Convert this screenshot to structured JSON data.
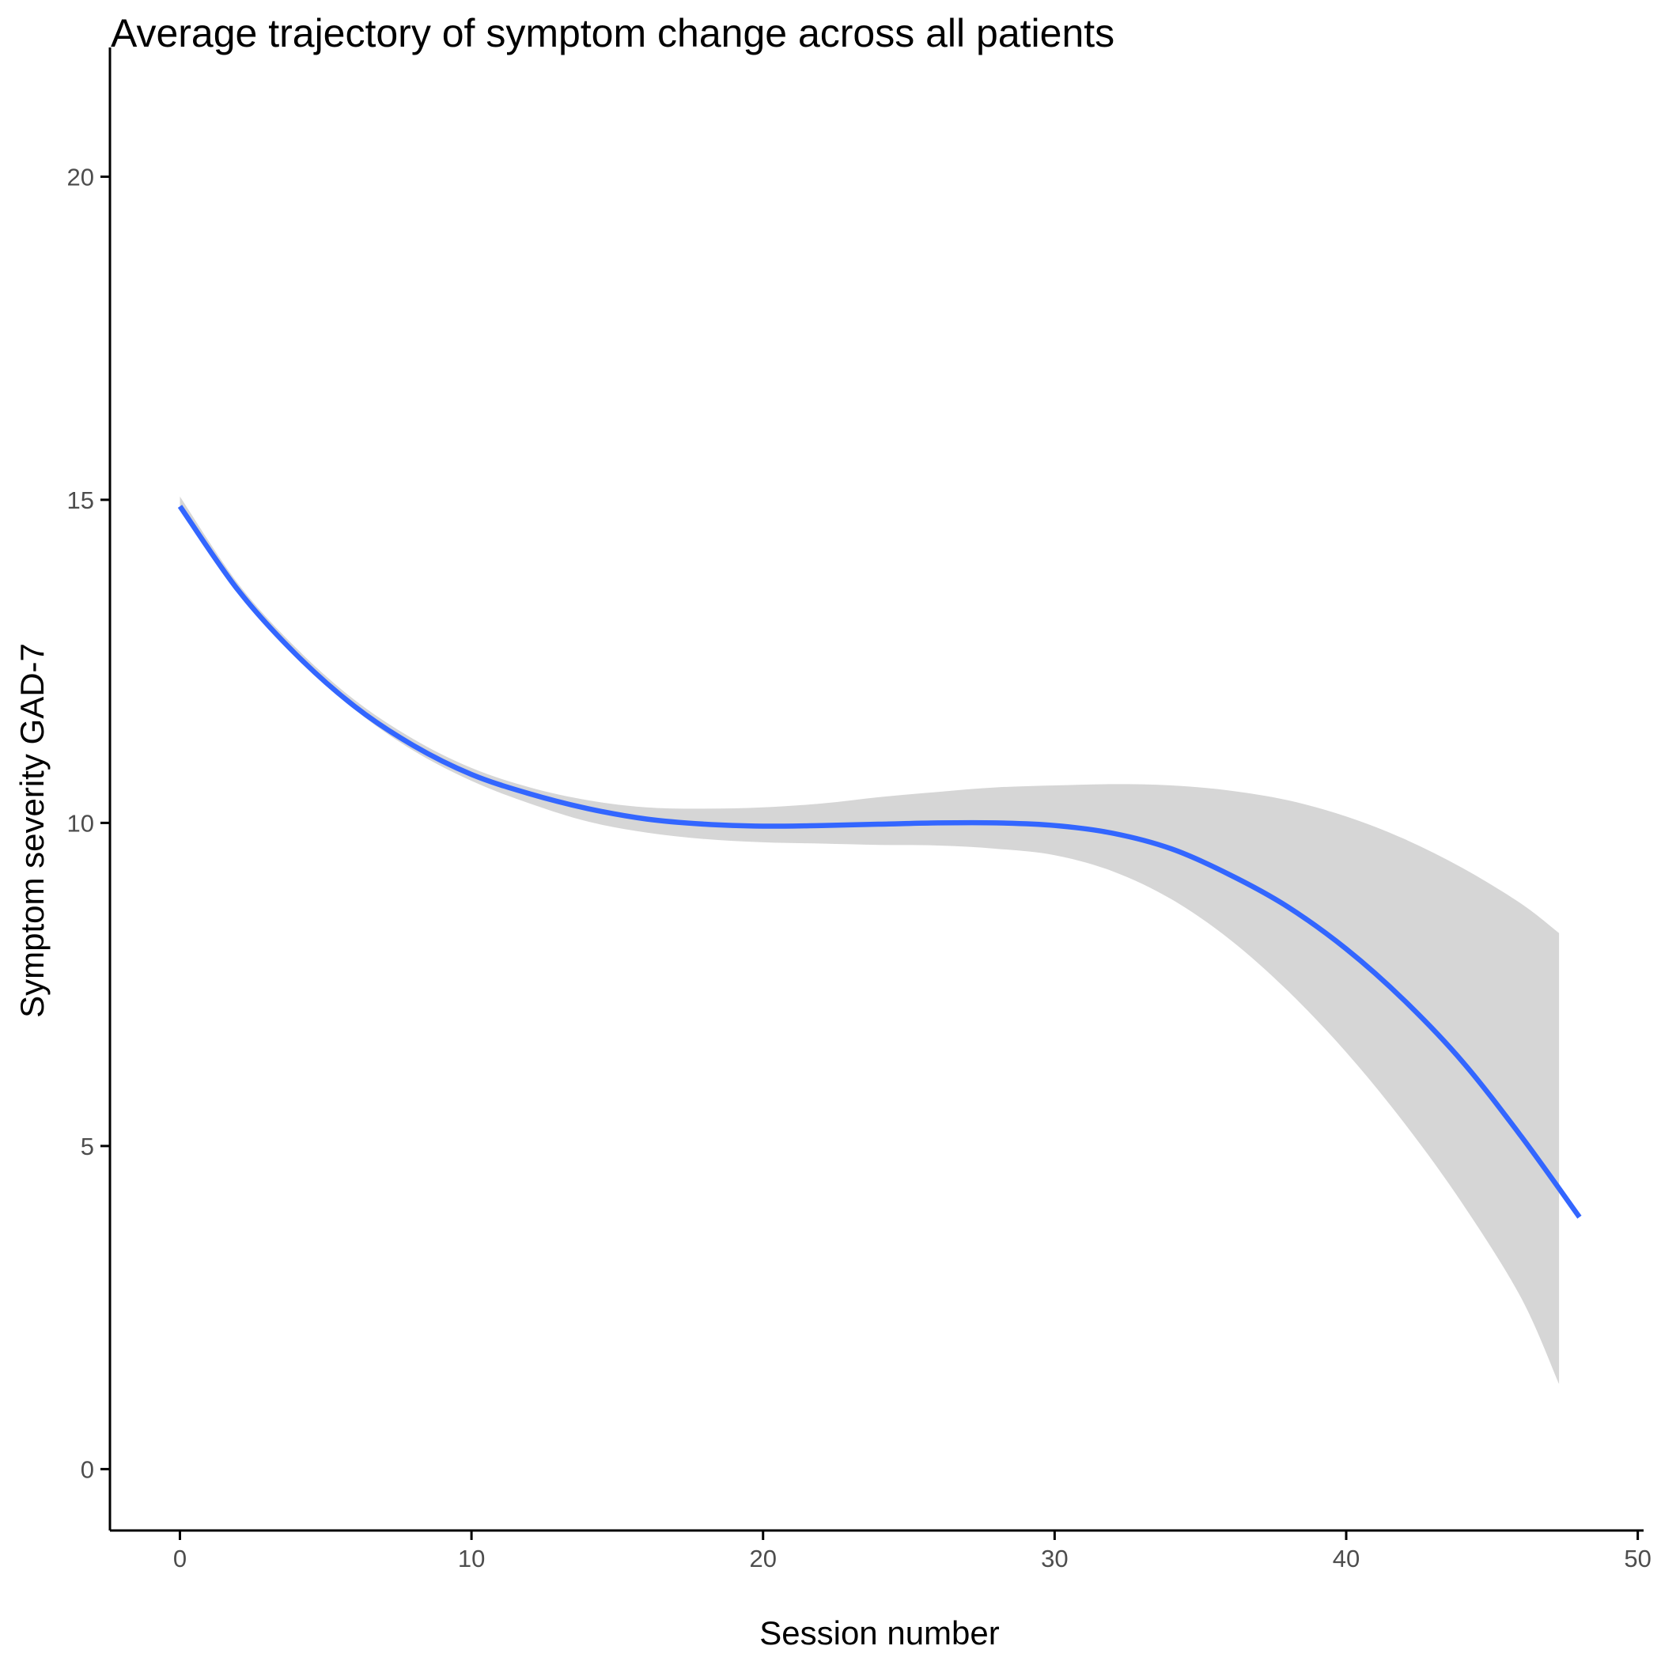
{
  "chart_data": {
    "type": "line",
    "title": "Average trajectory of symptom change across all patients",
    "xlabel": "Session number",
    "ylabel": "Symptom severity GAD-7",
    "xlim": [
      -2.4,
      50.2
    ],
    "ylim": [
      -0.95,
      22.0
    ],
    "x_ticks": [
      0,
      10,
      20,
      30,
      40,
      50
    ],
    "y_ticks": [
      0,
      5,
      10,
      15,
      20
    ],
    "grid": false,
    "legend": "none",
    "colors": {
      "line": "#3366FF",
      "ribbon": "#D6D6D6",
      "axis": "#000000",
      "tick_text": "#4D4D4D"
    },
    "series": [
      {
        "x": [
          0,
          2,
          4,
          6,
          8,
          10,
          12,
          14,
          16,
          18,
          20,
          22,
          24,
          26,
          28,
          30,
          32,
          34,
          36,
          38,
          40,
          42,
          44,
          46,
          48
        ],
        "y": [
          14.9,
          13.6,
          12.6,
          11.8,
          11.2,
          10.75,
          10.45,
          10.22,
          10.06,
          9.98,
          9.95,
          9.96,
          9.98,
          10.0,
          10.0,
          9.96,
          9.84,
          9.6,
          9.2,
          8.7,
          8.05,
          7.25,
          6.3,
          5.15,
          3.9
        ],
        "ci_lower": [
          14.85,
          13.55,
          12.55,
          11.75,
          11.12,
          10.65,
          10.3,
          10.02,
          9.85,
          9.75,
          9.7,
          9.68,
          9.66,
          9.65,
          9.6,
          9.5,
          9.25,
          8.82,
          8.2,
          7.4,
          6.45,
          5.35,
          4.1,
          2.65,
          0.6
        ],
        "ci_upper": [
          15.05,
          13.7,
          12.7,
          11.9,
          11.3,
          10.85,
          10.55,
          10.35,
          10.24,
          10.22,
          10.24,
          10.3,
          10.4,
          10.48,
          10.55,
          10.58,
          10.6,
          10.58,
          10.5,
          10.35,
          10.1,
          9.75,
          9.3,
          8.75,
          8.05
        ]
      }
    ]
  }
}
